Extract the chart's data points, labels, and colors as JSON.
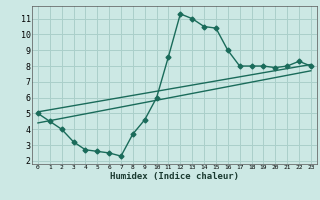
{
  "xlabel": "Humidex (Indice chaleur)",
  "bg_color": "#cce8e4",
  "grid_color": "#aacfca",
  "line_color": "#1a6b5a",
  "xlim": [
    -0.5,
    23.5
  ],
  "ylim": [
    1.8,
    11.8
  ],
  "xticks": [
    0,
    1,
    2,
    3,
    4,
    5,
    6,
    7,
    8,
    9,
    10,
    11,
    12,
    13,
    14,
    15,
    16,
    17,
    18,
    19,
    20,
    21,
    22,
    23
  ],
  "yticks": [
    2,
    3,
    4,
    5,
    6,
    7,
    8,
    9,
    10,
    11
  ],
  "line1_x": [
    0,
    1,
    2,
    3,
    4,
    5,
    6,
    7,
    8,
    9,
    10,
    11,
    12,
    13,
    14,
    15,
    16,
    17,
    18,
    19,
    20,
    21,
    22,
    23
  ],
  "line1_y": [
    5.0,
    4.5,
    4.0,
    3.2,
    2.7,
    2.6,
    2.5,
    2.3,
    3.7,
    4.6,
    6.0,
    8.6,
    11.3,
    11.0,
    10.5,
    10.4,
    9.0,
    8.0,
    8.0,
    8.0,
    7.9,
    8.0,
    8.3,
    8.0
  ],
  "line2_x": [
    0,
    23
  ],
  "line2_y": [
    5.1,
    8.1
  ],
  "line3_x": [
    0,
    23
  ],
  "line3_y": [
    4.4,
    7.7
  ],
  "marker_size": 2.5,
  "line_width": 1.0,
  "xlabel_fontsize": 6.5,
  "tick_fontsize_x": 4.5,
  "tick_fontsize_y": 6.0
}
